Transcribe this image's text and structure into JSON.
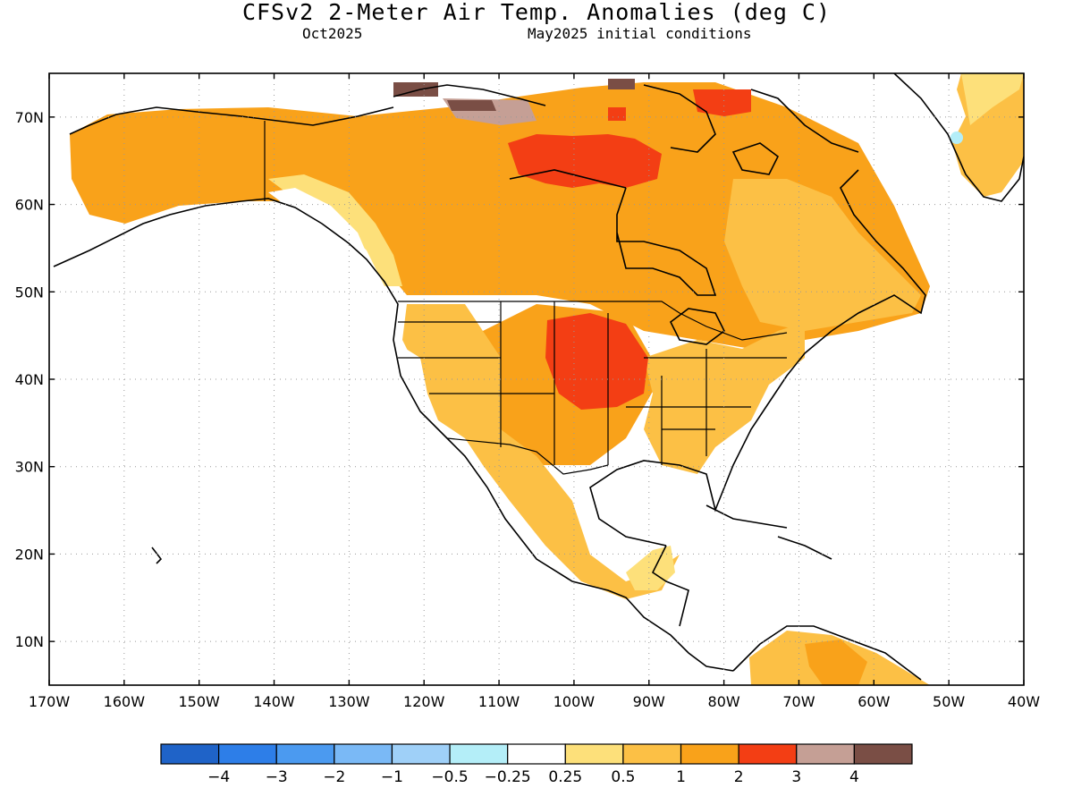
{
  "header": {
    "title": "CFSv2 2-Meter Air Temp. Anomalies (deg C)",
    "valid_month": "Oct2025",
    "initial_conditions": "May2025 initial conditions"
  },
  "map": {
    "region": "North America",
    "lat_range": [
      5,
      75
    ],
    "lon_range": [
      -170,
      -40
    ],
    "lat_labels": [
      "10N",
      "20N",
      "30N",
      "40N",
      "50N",
      "60N",
      "70N"
    ],
    "lat_values": [
      10,
      20,
      30,
      40,
      50,
      60,
      70
    ],
    "lon_labels": [
      "170W",
      "160W",
      "150W",
      "140W",
      "130W",
      "120W",
      "110W",
      "100W",
      "90W",
      "80W",
      "70W",
      "60W",
      "50W",
      "40W"
    ],
    "lon_values": [
      -170,
      -160,
      -150,
      -140,
      -130,
      -120,
      -110,
      -100,
      -90,
      -80,
      -70,
      -60,
      -50,
      -40
    ],
    "grid": "dotted"
  },
  "colorbar": {
    "colors": [
      "#1f63c8",
      "#2d7ee8",
      "#4b9af0",
      "#7ab9f6",
      "#9fd0f8",
      "#b4eef8",
      "#ffffff",
      "#fde07a",
      "#fcc045",
      "#f9a21a",
      "#f33e14",
      "#c59f95",
      "#7a4e45"
    ],
    "labels": [
      "−4",
      "−3",
      "−2",
      "−1",
      "−0.5",
      "−0.25",
      "0.25",
      "0.5",
      "1",
      "2",
      "3",
      "4"
    ]
  },
  "anomaly_fields": [
    {
      "region": "Alaska and northern Canada",
      "category": "1 to 2"
    },
    {
      "region": "Hudson Bay area",
      "category": "2 to 3"
    },
    {
      "region": "Northern Great Plains / Upper Midwest",
      "category": "2 to 3"
    },
    {
      "region": "Western and southern United States",
      "category": "0.5 to 1"
    },
    {
      "region": "Mexico",
      "category": "0.5 to 1"
    },
    {
      "region": "Canadian Arctic Archipelago",
      "category": "3 to 4 and above 4"
    },
    {
      "region": "Greenland coast",
      "category": "0.25 to 1"
    }
  ]
}
